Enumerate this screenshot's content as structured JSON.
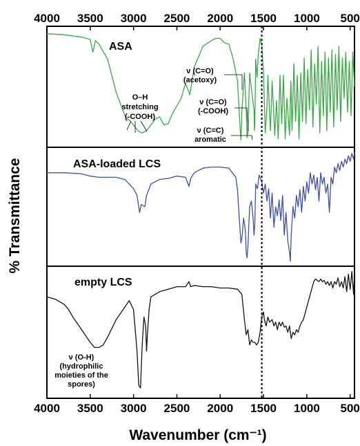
{
  "chart_data": {
    "type": "line",
    "xlabel": "Wavenumber (cm⁻¹)",
    "ylabel": "% Transmittance",
    "xlim": [
      4000,
      450
    ],
    "x_reversed": true,
    "x_ticks": [
      4000,
      3500,
      3000,
      2500,
      2000,
      1500,
      1000,
      500
    ],
    "x_tick_labels": [
      "4000",
      "3500",
      "3000",
      "2500",
      "2000",
      "1500",
      "1000",
      "500"
    ],
    "reference_line": {
      "x": 1520,
      "style": "dotted"
    },
    "panels": [
      {
        "title": "ASA",
        "color": "#3aa845",
        "points": [
          [
            4000,
            0.96
          ],
          [
            3800,
            0.95
          ],
          [
            3600,
            0.93
          ],
          [
            3500,
            0.91
          ],
          [
            3470,
            0.8
          ],
          [
            3440,
            0.9
          ],
          [
            3400,
            0.87
          ],
          [
            3300,
            0.74
          ],
          [
            3200,
            0.45
          ],
          [
            3100,
            0.25
          ],
          [
            3000,
            0.17
          ],
          [
            2950,
            0.12
          ],
          [
            2900,
            0.1
          ],
          [
            2850,
            0.12
          ],
          [
            2800,
            0.17
          ],
          [
            2750,
            0.22
          ],
          [
            2700,
            0.24
          ],
          [
            2650,
            0.17
          ],
          [
            2600,
            0.18
          ],
          [
            2550,
            0.27
          ],
          [
            2450,
            0.4
          ],
          [
            2400,
            0.53
          ],
          [
            2350,
            0.43
          ],
          [
            2300,
            0.67
          ],
          [
            2200,
            0.85
          ],
          [
            2100,
            0.9
          ],
          [
            2050,
            0.92
          ],
          [
            2000,
            0.92
          ],
          [
            1950,
            0.88
          ],
          [
            1900,
            0.87
          ],
          [
            1850,
            0.74
          ],
          [
            1800,
            0.55
          ],
          [
            1770,
            0.14
          ],
          [
            1760,
            0.04
          ],
          [
            1750,
            0.28
          ],
          [
            1740,
            0.4
          ],
          [
            1720,
            0.62
          ],
          [
            1700,
            0.3
          ],
          [
            1690,
            0.06
          ],
          [
            1680,
            0.1
          ],
          [
            1660,
            0.62
          ],
          [
            1640,
            0.48
          ],
          [
            1610,
            0.3
          ],
          [
            1605,
            0.12
          ],
          [
            1600,
            0.18
          ],
          [
            1590,
            0.74
          ],
          [
            1575,
            0.58
          ],
          [
            1560,
            0.78
          ],
          [
            1540,
            0.92
          ],
          [
            1520,
            0.86
          ],
          [
            1500,
            0.62
          ],
          [
            1480,
            0.1
          ],
          [
            1460,
            0.32
          ],
          [
            1450,
            0.6
          ],
          [
            1420,
            0.12
          ],
          [
            1400,
            0.55
          ],
          [
            1370,
            0.08
          ],
          [
            1350,
            0.38
          ],
          [
            1330,
            0.05
          ],
          [
            1310,
            0.6
          ],
          [
            1290,
            0.18
          ],
          [
            1270,
            0.6
          ],
          [
            1250,
            0.05
          ],
          [
            1230,
            0.4
          ],
          [
            1200,
            0.08
          ],
          [
            1185,
            0.55
          ],
          [
            1170,
            0.12
          ],
          [
            1150,
            0.7
          ],
          [
            1130,
            0.2
          ],
          [
            1110,
            0.6
          ],
          [
            1090,
            0.05
          ],
          [
            1070,
            0.62
          ],
          [
            1050,
            0.2
          ],
          [
            1030,
            0.75
          ],
          [
            1010,
            0.18
          ],
          [
            990,
            0.65
          ],
          [
            970,
            0.3
          ],
          [
            950,
            0.82
          ],
          [
            930,
            0.15
          ],
          [
            910,
            0.7
          ],
          [
            890,
            0.35
          ],
          [
            870,
            0.85
          ],
          [
            850,
            0.1
          ],
          [
            830,
            0.72
          ],
          [
            810,
            0.25
          ],
          [
            790,
            0.8
          ],
          [
            770,
            0.12
          ],
          [
            750,
            0.75
          ],
          [
            730,
            0.28
          ],
          [
            710,
            0.82
          ],
          [
            690,
            0.15
          ],
          [
            670,
            0.78
          ],
          [
            650,
            0.3
          ],
          [
            630,
            0.85
          ],
          [
            610,
            0.2
          ],
          [
            590,
            0.75
          ],
          [
            570,
            0.4
          ],
          [
            550,
            0.8
          ],
          [
            530,
            0.28
          ],
          [
            510,
            0.72
          ],
          [
            490,
            0.25
          ],
          [
            470,
            0.8
          ],
          [
            450,
            0.5
          ]
        ],
        "annotations": [
          {
            "lines": [
              "O–H",
              "stretching",
              "(-COOH)"
            ]
          },
          {
            "lines": [
              "ν (C=O)",
              "(acetoxy)"
            ]
          },
          {
            "lines": [
              "ν (C=O)",
              "(-COOH)"
            ]
          },
          {
            "lines": [
              "ν (C=C)",
              "aromatic"
            ]
          }
        ]
      },
      {
        "title": "ASA-loaded LCS",
        "color": "#3d4fa6",
        "points": [
          [
            4000,
            0.8
          ],
          [
            3800,
            0.8
          ],
          [
            3600,
            0.79
          ],
          [
            3500,
            0.77
          ],
          [
            3400,
            0.76
          ],
          [
            3300,
            0.76
          ],
          [
            3200,
            0.76
          ],
          [
            3100,
            0.74
          ],
          [
            3050,
            0.7
          ],
          [
            3000,
            0.66
          ],
          [
            2960,
            0.6
          ],
          [
            2930,
            0.45
          ],
          [
            2910,
            0.52
          ],
          [
            2870,
            0.5
          ],
          [
            2850,
            0.6
          ],
          [
            2800,
            0.7
          ],
          [
            2700,
            0.74
          ],
          [
            2600,
            0.75
          ],
          [
            2500,
            0.77
          ],
          [
            2400,
            0.76
          ],
          [
            2360,
            0.68
          ],
          [
            2340,
            0.75
          ],
          [
            2300,
            0.8
          ],
          [
            2200,
            0.84
          ],
          [
            2100,
            0.85
          ],
          [
            2000,
            0.85
          ],
          [
            1900,
            0.84
          ],
          [
            1820,
            0.76
          ],
          [
            1800,
            0.65
          ],
          [
            1780,
            0.4
          ],
          [
            1760,
            0.18
          ],
          [
            1745,
            0.25
          ],
          [
            1730,
            0.4
          ],
          [
            1710,
            0.3
          ],
          [
            1700,
            0.1
          ],
          [
            1690,
            0.05
          ],
          [
            1680,
            0.15
          ],
          [
            1660,
            0.5
          ],
          [
            1640,
            0.55
          ],
          [
            1620,
            0.4
          ],
          [
            1610,
            0.25
          ],
          [
            1600,
            0.35
          ],
          [
            1590,
            0.7
          ],
          [
            1570,
            0.66
          ],
          [
            1550,
            0.78
          ],
          [
            1520,
            0.72
          ],
          [
            1500,
            0.62
          ],
          [
            1480,
            0.7
          ],
          [
            1460,
            0.55
          ],
          [
            1440,
            0.66
          ],
          [
            1420,
            0.4
          ],
          [
            1400,
            0.62
          ],
          [
            1380,
            0.32
          ],
          [
            1360,
            0.5
          ],
          [
            1340,
            0.42
          ],
          [
            1320,
            0.56
          ],
          [
            1300,
            0.38
          ],
          [
            1280,
            0.6
          ],
          [
            1260,
            0.25
          ],
          [
            1240,
            0.45
          ],
          [
            1220,
            0.2
          ],
          [
            1200,
            0.1
          ],
          [
            1190,
            0.02
          ],
          [
            1180,
            0.25
          ],
          [
            1160,
            0.5
          ],
          [
            1140,
            0.4
          ],
          [
            1120,
            0.6
          ],
          [
            1100,
            0.5
          ],
          [
            1080,
            0.65
          ],
          [
            1060,
            0.45
          ],
          [
            1040,
            0.68
          ],
          [
            1020,
            0.55
          ],
          [
            1000,
            0.72
          ],
          [
            980,
            0.62
          ],
          [
            960,
            0.8
          ],
          [
            940,
            0.7
          ],
          [
            920,
            0.78
          ],
          [
            900,
            0.65
          ],
          [
            880,
            0.76
          ],
          [
            860,
            0.55
          ],
          [
            840,
            0.8
          ],
          [
            820,
            0.7
          ],
          [
            800,
            0.76
          ],
          [
            780,
            0.62
          ],
          [
            760,
            0.7
          ],
          [
            740,
            0.45
          ],
          [
            720,
            0.76
          ],
          [
            700,
            0.7
          ],
          [
            680,
            0.85
          ],
          [
            660,
            0.8
          ],
          [
            640,
            0.88
          ],
          [
            620,
            0.82
          ],
          [
            600,
            0.9
          ],
          [
            580,
            0.85
          ],
          [
            560,
            0.92
          ],
          [
            540,
            0.88
          ],
          [
            520,
            0.95
          ],
          [
            500,
            0.9
          ],
          [
            480,
            0.97
          ],
          [
            460,
            0.92
          ],
          [
            450,
            0.98
          ]
        ],
        "annotations": []
      },
      {
        "title": "empty LCS",
        "color": "#111111",
        "points": [
          [
            4000,
            0.78
          ],
          [
            3900,
            0.76
          ],
          [
            3800,
            0.72
          ],
          [
            3750,
            0.68
          ],
          [
            3700,
            0.62
          ],
          [
            3600,
            0.52
          ],
          [
            3500,
            0.42
          ],
          [
            3450,
            0.38
          ],
          [
            3400,
            0.38
          ],
          [
            3350,
            0.4
          ],
          [
            3300,
            0.46
          ],
          [
            3200,
            0.6
          ],
          [
            3100,
            0.7
          ],
          [
            3050,
            0.75
          ],
          [
            3000,
            0.68
          ],
          [
            2960,
            0.35
          ],
          [
            2940,
            0.08
          ],
          [
            2920,
            0.06
          ],
          [
            2900,
            0.4
          ],
          [
            2880,
            0.62
          ],
          [
            2860,
            0.55
          ],
          [
            2850,
            0.35
          ],
          [
            2840,
            0.48
          ],
          [
            2820,
            0.68
          ],
          [
            2800,
            0.78
          ],
          [
            2700,
            0.82
          ],
          [
            2600,
            0.84
          ],
          [
            2500,
            0.86
          ],
          [
            2400,
            0.86
          ],
          [
            2360,
            0.9
          ],
          [
            2340,
            0.86
          ],
          [
            2300,
            0.87
          ],
          [
            2200,
            0.86
          ],
          [
            2100,
            0.86
          ],
          [
            2000,
            0.85
          ],
          [
            1900,
            0.85
          ],
          [
            1800,
            0.84
          ],
          [
            1750,
            0.8
          ],
          [
            1720,
            0.6
          ],
          [
            1700,
            0.48
          ],
          [
            1680,
            0.52
          ],
          [
            1660,
            0.4
          ],
          [
            1640,
            0.44
          ],
          [
            1620,
            0.42
          ],
          [
            1600,
            0.42
          ],
          [
            1580,
            0.4
          ],
          [
            1560,
            0.42
          ],
          [
            1540,
            0.5
          ],
          [
            1520,
            0.62
          ],
          [
            1500,
            0.66
          ],
          [
            1490,
            0.6
          ],
          [
            1470,
            0.55
          ],
          [
            1450,
            0.62
          ],
          [
            1430,
            0.58
          ],
          [
            1400,
            0.6
          ],
          [
            1380,
            0.55
          ],
          [
            1360,
            0.58
          ],
          [
            1340,
            0.52
          ],
          [
            1320,
            0.58
          ],
          [
            1300,
            0.55
          ],
          [
            1280,
            0.58
          ],
          [
            1260,
            0.54
          ],
          [
            1240,
            0.55
          ],
          [
            1220,
            0.5
          ],
          [
            1200,
            0.55
          ],
          [
            1180,
            0.45
          ],
          [
            1160,
            0.5
          ],
          [
            1140,
            0.48
          ],
          [
            1120,
            0.52
          ],
          [
            1100,
            0.5
          ],
          [
            1080,
            0.55
          ],
          [
            1060,
            0.58
          ],
          [
            1040,
            0.6
          ],
          [
            1020,
            0.65
          ],
          [
            1000,
            0.7
          ],
          [
            980,
            0.75
          ],
          [
            960,
            0.8
          ],
          [
            940,
            0.85
          ],
          [
            920,
            0.9
          ],
          [
            900,
            0.92
          ],
          [
            880,
            0.91
          ],
          [
            860,
            0.9
          ],
          [
            840,
            0.92
          ],
          [
            820,
            0.9
          ],
          [
            800,
            0.91
          ],
          [
            780,
            0.88
          ],
          [
            760,
            0.9
          ],
          [
            740,
            0.87
          ],
          [
            720,
            0.9
          ],
          [
            700,
            0.85
          ],
          [
            680,
            0.9
          ],
          [
            660,
            0.88
          ],
          [
            640,
            0.93
          ],
          [
            620,
            0.86
          ],
          [
            600,
            0.9
          ],
          [
            580,
            0.85
          ],
          [
            560,
            0.94
          ],
          [
            540,
            0.82
          ],
          [
            520,
            0.96
          ],
          [
            500,
            0.84
          ],
          [
            480,
            0.98
          ],
          [
            460,
            0.8
          ],
          [
            450,
            0.96
          ]
        ],
        "annotations": [
          {
            "lines": [
              "ν (O-H)",
              "(hydrophilic",
              "moieties of the",
              "spores)"
            ]
          }
        ]
      }
    ]
  }
}
